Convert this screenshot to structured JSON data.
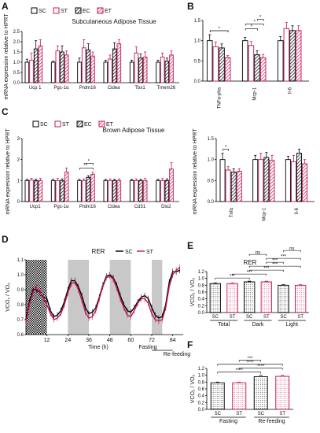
{
  "panels": {
    "A": "A",
    "B": "B",
    "C": "C",
    "D": "D",
    "E": "E",
    "F": "F"
  },
  "legend": {
    "SC": "SC",
    "ST": "ST",
    "EC": "EC",
    "ET": "ET"
  },
  "colors": {
    "SC": "#000000",
    "ST": "#c2185b",
    "EC": "#000000",
    "ET": "#c2185b",
    "shade": "#c8c8c8"
  },
  "chart_data": [
    {
      "id": "A",
      "type": "bar",
      "title": "Subcutaneous Adipose Tissue",
      "ylabel": "mRNA expression relative to HPRT",
      "ylim": [
        0,
        2.5
      ],
      "yticks": [
        "0.0",
        "0.5",
        "1.0",
        "1.5",
        "2.0",
        "2.5"
      ],
      "categories": [
        "Ucp 1",
        "Pgc-1α",
        "Prdm16",
        "Cidea",
        "Tbx1",
        "Tmem26"
      ],
      "series": [
        {
          "name": "SC",
          "values": [
            1.0,
            1.0,
            1.0,
            1.0,
            1.0,
            1.0
          ]
        },
        {
          "name": "ST",
          "values": [
            1.1,
            1.55,
            1.7,
            1.15,
            1.45,
            1.25
          ]
        },
        {
          "name": "EC",
          "values": [
            1.65,
            1.5,
            1.6,
            1.65,
            1.2,
            1.05
          ]
        },
        {
          "name": "ET",
          "values": [
            1.8,
            1.35,
            1.3,
            1.9,
            1.25,
            1.35
          ]
        }
      ],
      "errors": [
        [
          0.15,
          0.05,
          0.2,
          0.1,
          0.1,
          0.1
        ],
        [
          0.35,
          0.25,
          0.4,
          0.2,
          0.3,
          0.2
        ],
        [
          0.4,
          0.3,
          0.3,
          0.3,
          0.2,
          0.15
        ],
        [
          0.3,
          0.2,
          0.2,
          0.2,
          0.25,
          0.2
        ]
      ]
    },
    {
      "id": "B",
      "type": "bar",
      "ylim": [
        0,
        1.5
      ],
      "yticks": [
        "0.0",
        "0.5",
        "1.0",
        "1.5"
      ],
      "categories": [
        "TNFα-pha",
        "Mcp-1",
        "Il-6"
      ],
      "series": [
        {
          "name": "SC",
          "values": [
            1.0,
            1.0,
            1.0
          ]
        },
        {
          "name": "ST",
          "values": [
            0.85,
            0.88,
            1.3
          ]
        },
        {
          "name": "EC",
          "values": [
            0.82,
            0.65,
            1.25
          ]
        },
        {
          "name": "ET",
          "values": [
            0.58,
            0.58,
            1.25
          ]
        }
      ],
      "errors": [
        [
          0.15,
          0.08,
          0.1
        ],
        [
          0.12,
          0.1,
          0.15
        ],
        [
          0.1,
          0.1,
          0.12
        ],
        [
          0.05,
          0.08,
          0.12
        ]
      ],
      "significance": [
        {
          "cat": 0,
          "from": 0,
          "to": 3,
          "label": "*"
        },
        {
          "cat": 1,
          "from": 0,
          "to": 2,
          "label": "*"
        },
        {
          "cat": 1,
          "from": 0,
          "to": 3,
          "label": "*"
        },
        {
          "cat": 1,
          "from": 2,
          "to": 3,
          "label": "*"
        }
      ]
    },
    {
      "id": "C1",
      "type": "bar",
      "title": "Brown Adipose Tissue",
      "ylabel": "mRNA expression relative to HPRT",
      "ylim": [
        0,
        3
      ],
      "yticks": [
        "0",
        "1",
        "2",
        "3"
      ],
      "categories": [
        "Ucp1",
        "Pgc-1α",
        "Prdm16",
        "Cidea",
        "Cd31",
        "Dio2"
      ],
      "series": [
        {
          "name": "SC",
          "values": [
            1.0,
            1.0,
            1.0,
            1.0,
            1.0,
            1.0
          ]
        },
        {
          "name": "ST",
          "values": [
            1.02,
            1.0,
            1.0,
            1.0,
            1.0,
            1.0
          ]
        },
        {
          "name": "EC",
          "values": [
            1.0,
            1.0,
            1.15,
            1.0,
            1.0,
            1.0
          ]
        },
        {
          "name": "ET",
          "values": [
            1.0,
            1.4,
            1.3,
            1.0,
            1.0,
            1.55
          ]
        }
      ],
      "errors": [
        [
          0.06,
          0.06,
          0.06,
          0.06,
          0.06,
          0.06
        ],
        [
          0.08,
          0.1,
          0.08,
          0.08,
          0.08,
          0.1
        ],
        [
          0.06,
          0.08,
          0.08,
          0.06,
          0.06,
          0.08
        ],
        [
          0.1,
          0.2,
          0.1,
          0.08,
          0.1,
          0.3
        ]
      ],
      "significance": [
        {
          "cat": 2,
          "from": 0,
          "to": 3,
          "label": "*"
        },
        {
          "cat": 2,
          "from": 1,
          "to": 3,
          "label": "*"
        }
      ]
    },
    {
      "id": "C2",
      "type": "bar",
      "ylabel": "mRNA expression relative to HPRT",
      "ylim": [
        0,
        1.5
      ],
      "yticks": [
        "0.0",
        "0.5",
        "1.0",
        "1.5"
      ],
      "categories": [
        "Tnfα",
        "Mcp-1",
        "Il-6"
      ],
      "series": [
        {
          "name": "SC",
          "values": [
            1.0,
            1.0,
            1.0
          ]
        },
        {
          "name": "ST",
          "values": [
            0.75,
            1.0,
            0.95
          ]
        },
        {
          "name": "EC",
          "values": [
            0.7,
            1.05,
            1.15
          ]
        },
        {
          "name": "ET",
          "values": [
            0.72,
            0.98,
            0.9
          ]
        }
      ],
      "errors": [
        [
          0.15,
          0.1,
          0.08
        ],
        [
          0.08,
          0.15,
          0.15
        ],
        [
          0.08,
          0.12,
          0.1
        ],
        [
          0.06,
          0.12,
          0.1
        ]
      ],
      "significance": [
        {
          "cat": 0,
          "from": 0,
          "to": 1,
          "label": "*"
        }
      ]
    },
    {
      "id": "D",
      "type": "line",
      "title": "RER",
      "xlabel": "Time (h)",
      "ylabel": "VCO₂ / VO₂",
      "ylim": [
        0.6,
        1.1
      ],
      "yticks": [
        "0.6",
        "0.7",
        "0.8",
        "0.9",
        "1.0",
        "1.1"
      ],
      "xlim": [
        0,
        90
      ],
      "xticks": [
        "12",
        "24",
        "36",
        "48",
        "60",
        "72",
        "84"
      ],
      "dark_periods": [
        [
          0,
          12
        ],
        [
          24,
          36
        ],
        [
          48,
          60
        ],
        [
          72,
          78
        ]
      ],
      "annotations": {
        "fasting": "Fasting",
        "refeeding": "Re-feeding"
      },
      "x": [
        0,
        2,
        4,
        6,
        8,
        10,
        12,
        14,
        16,
        18,
        20,
        22,
        24,
        26,
        28,
        30,
        32,
        34,
        36,
        38,
        40,
        42,
        44,
        46,
        48,
        50,
        52,
        54,
        56,
        58,
        60,
        62,
        64,
        66,
        68,
        70,
        72,
        74,
        76,
        78,
        80,
        82,
        84,
        86,
        88
      ],
      "series": [
        {
          "name": "SC",
          "values": [
            0.7,
            0.82,
            0.9,
            0.9,
            0.88,
            0.85,
            0.84,
            0.76,
            0.72,
            0.73,
            0.76,
            0.82,
            0.9,
            0.96,
            0.96,
            0.92,
            0.86,
            0.78,
            0.74,
            0.75,
            0.78,
            0.85,
            0.93,
            0.99,
            1.0,
            0.98,
            0.93,
            0.86,
            0.8,
            0.76,
            0.75,
            0.78,
            0.82,
            0.85,
            0.86,
            0.84,
            0.78,
            0.73,
            0.71,
            0.72,
            0.8,
            0.95,
            1.02,
            1.02,
            1.03
          ]
        },
        {
          "name": "ST",
          "values": [
            0.68,
            0.8,
            0.88,
            0.92,
            0.89,
            0.84,
            0.8,
            0.74,
            0.7,
            0.71,
            0.74,
            0.8,
            0.88,
            0.94,
            0.95,
            0.9,
            0.83,
            0.75,
            0.71,
            0.72,
            0.76,
            0.84,
            0.92,
            0.98,
            0.99,
            0.97,
            0.91,
            0.84,
            0.78,
            0.73,
            0.72,
            0.76,
            0.81,
            0.84,
            0.84,
            0.81,
            0.74,
            0.7,
            0.69,
            0.7,
            0.78,
            0.92,
            1.0,
            1.03,
            1.05
          ]
        }
      ]
    },
    {
      "id": "E",
      "type": "bar",
      "title": "RER",
      "ylabel": "VCO₂ / VO₂",
      "ylim": [
        0,
        1.2
      ],
      "yticks": [
        "0.0",
        "0.2",
        "0.4",
        "0.6",
        "0.8",
        "1.0",
        "1.2"
      ],
      "groups": [
        "Total",
        "Dark",
        "Light"
      ],
      "categories": [
        "SC",
        "ST",
        "SC",
        "ST",
        "SC",
        "ST"
      ],
      "values": [
        0.85,
        0.85,
        0.9,
        0.9,
        0.8,
        0.8
      ],
      "errors": [
        0.02,
        0.02,
        0.02,
        0.02,
        0.02,
        0.02
      ],
      "significance": [
        {
          "from": 0,
          "to": 2,
          "label": "***"
        },
        {
          "from": 1,
          "to": 3,
          "label": "***"
        },
        {
          "from": 2,
          "to": 4,
          "label": "***"
        },
        {
          "from": 2,
          "to": 5,
          "label": "***"
        },
        {
          "from": 3,
          "to": 4,
          "label": "***"
        },
        {
          "from": 3,
          "to": 5,
          "label": "***"
        },
        {
          "from": 2,
          "to": 3,
          "label": "ns"
        },
        {
          "from": 4,
          "to": 5,
          "label": "ns"
        }
      ]
    },
    {
      "id": "F",
      "type": "bar",
      "ylabel": "VCO₂ / VO₂",
      "ylim": [
        0,
        1.2
      ],
      "yticks": [
        "0.0",
        "0.2",
        "0.4",
        "0.6",
        "0.8",
        "1.0",
        "1.2"
      ],
      "groups": [
        "Fasting",
        "Re-feeding"
      ],
      "categories": [
        "SC",
        "ST",
        "SC",
        "ST"
      ],
      "values": [
        0.78,
        0.78,
        0.96,
        0.97
      ],
      "errors": [
        0.02,
        0.02,
        0.04,
        0.03
      ],
      "significance": [
        {
          "from": 0,
          "to": 2,
          "label": "****"
        },
        {
          "from": 1,
          "to": 3,
          "label": "****"
        },
        {
          "from": 0,
          "to": 3,
          "label": "****"
        },
        {
          "from": 1,
          "to": 2,
          "label": "***"
        }
      ]
    }
  ]
}
